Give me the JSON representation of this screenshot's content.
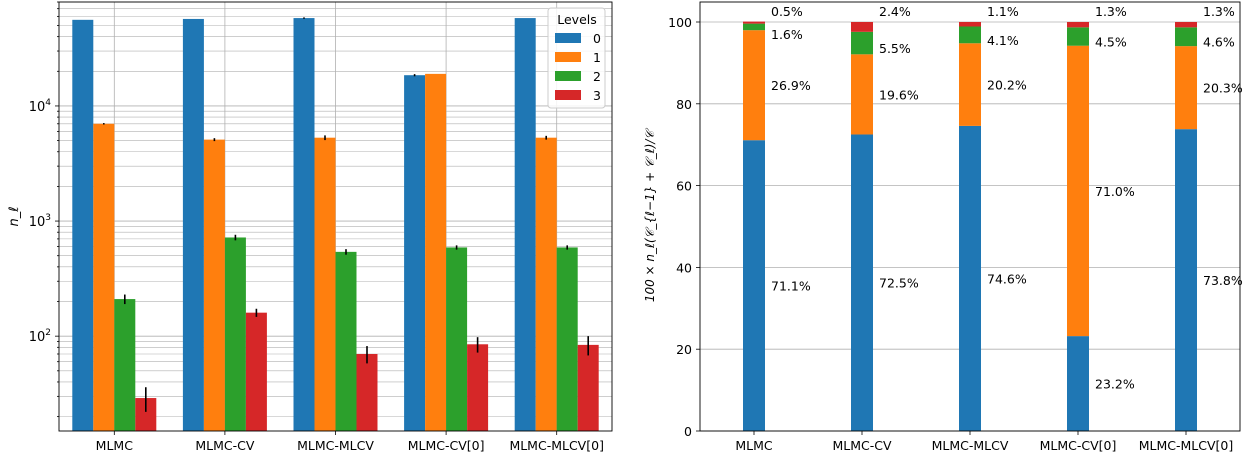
{
  "colors": {
    "level_0": "#1f77b4",
    "level_1": "#ff7f0e",
    "level_2": "#2ca02c",
    "level_3": "#d62728",
    "grid": "#b0b0b0",
    "axis": "#000000",
    "error_bar": "#000000"
  },
  "chart_data": [
    {
      "type": "bar",
      "title": "",
      "xlabel": "",
      "ylabel": "n_ℓ",
      "yscale": "log",
      "ylim": [
        15,
        80000
      ],
      "grid": true,
      "categories": [
        "MLMC",
        "MLMC-CV",
        "MLMC-MLCV",
        "MLMC-CV[0]",
        "MLMC-MLCV[0]"
      ],
      "y_ticks": [
        {
          "value": 100,
          "base": "10",
          "exp": "2"
        },
        {
          "value": 1000,
          "base": "10",
          "exp": "3"
        },
        {
          "value": 10000,
          "base": "10",
          "exp": "4"
        }
      ],
      "legend": {
        "title": "Levels",
        "placement": "top-right",
        "entries": [
          "0",
          "1",
          "2",
          "3"
        ]
      },
      "series": [
        {
          "name": "0",
          "values": [
            56000,
            57000,
            58000,
            18500,
            58000
          ],
          "errors": [
            0,
            0,
            800,
            400,
            0
          ]
        },
        {
          "name": "1",
          "values": [
            7000,
            5100,
            5300,
            19000,
            5300
          ],
          "errors": [
            100,
            150,
            250,
            0,
            200
          ]
        },
        {
          "name": "2",
          "values": [
            210,
            720,
            540,
            590,
            590
          ],
          "errors": [
            20,
            40,
            30,
            25,
            25
          ]
        },
        {
          "name": "3",
          "values": [
            29,
            160,
            70,
            85,
            84
          ],
          "errors": [
            7,
            13,
            12,
            13,
            16
          ]
        }
      ]
    },
    {
      "type": "bar",
      "stacked": true,
      "title": "",
      "xlabel": "",
      "ylabel": "100 × n_ℓ(𝒞_{ℓ−1} + 𝒞_ℓ)/𝒞",
      "ylim": [
        0,
        100
      ],
      "grid": true,
      "categories": [
        "MLMC",
        "MLMC-CV",
        "MLMC-MLCV",
        "MLMC-CV[0]",
        "MLMC-MLCV[0]"
      ],
      "y_ticks": [
        "0",
        "20",
        "40",
        "60",
        "80",
        "100"
      ],
      "series": [
        {
          "name": "0",
          "values": [
            71.1,
            72.5,
            74.6,
            23.2,
            73.8
          ],
          "labels": [
            "71.1%",
            "72.5%",
            "74.6%",
            "23.2%",
            "73.8%"
          ]
        },
        {
          "name": "1",
          "values": [
            26.9,
            19.6,
            20.2,
            71.0,
            20.3
          ],
          "labels": [
            "26.9%",
            "19.6%",
            "20.2%",
            "71.0%",
            "20.3%"
          ]
        },
        {
          "name": "2",
          "values": [
            1.6,
            5.5,
            4.1,
            4.5,
            4.6
          ],
          "labels": [
            "1.6%",
            "5.5%",
            "4.1%",
            "4.5%",
            "4.6%"
          ]
        },
        {
          "name": "3",
          "values": [
            0.5,
            2.4,
            1.1,
            1.3,
            1.3
          ],
          "labels": [
            "0.5%",
            "2.4%",
            "1.1%",
            "1.3%",
            "1.3%"
          ]
        }
      ]
    }
  ]
}
